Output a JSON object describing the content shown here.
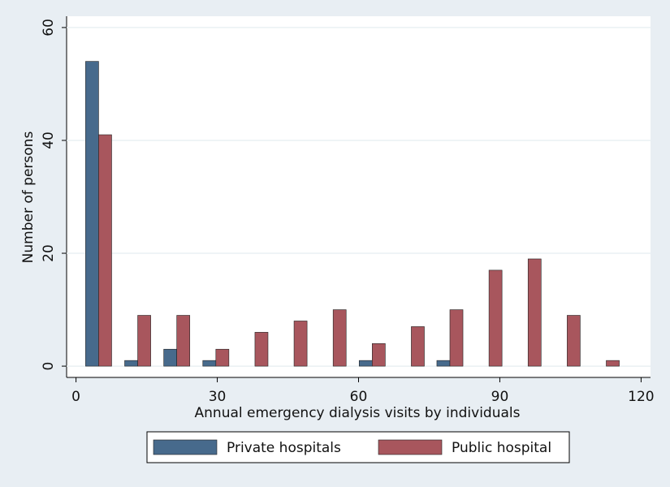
{
  "chart_data": {
    "type": "bar",
    "x_label": "Annual emergency dialysis visits by individuals",
    "y_label": "Number of persons",
    "x": [
      4.8,
      13.1,
      21.4,
      29.7,
      38.0,
      46.3,
      54.6,
      62.9,
      71.2,
      79.4,
      87.7,
      96.0,
      104.3,
      112.6
    ],
    "series": [
      {
        "name": "Private hospitals",
        "color": "#476a8c",
        "values": [
          54,
          1,
          3,
          1,
          0,
          0,
          0,
          1,
          0,
          1,
          0,
          0,
          0,
          0
        ]
      },
      {
        "name": "Public hospital",
        "color": "#a8565d",
        "values": [
          41,
          9,
          9,
          3,
          6,
          8,
          10,
          4,
          7,
          10,
          17,
          19,
          9,
          1
        ]
      }
    ],
    "xlim": [
      -2,
      122
    ],
    "xticks": [
      0,
      30,
      60,
      90,
      120
    ],
    "ylim": [
      -2,
      62
    ],
    "yticks": [
      0,
      20,
      40,
      60
    ],
    "grid": true,
    "legend": "bottom"
  }
}
